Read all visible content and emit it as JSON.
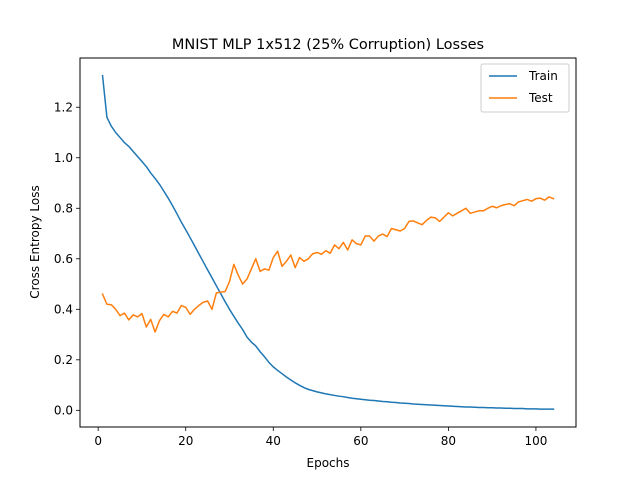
{
  "chart_data": {
    "type": "line",
    "title": "MNIST MLP 1x512 (25% Corruption) Losses",
    "xlabel": "Epochs",
    "ylabel": "Cross Entropy Loss",
    "xlim": [
      -4.15,
      109.15
    ],
    "ylim": [
      -0.066,
      1.395
    ],
    "xticks": [
      0,
      20,
      40,
      60,
      80,
      100
    ],
    "yticks": [
      0.0,
      0.2,
      0.4,
      0.6,
      0.8,
      1.0,
      1.2
    ],
    "grid": false,
    "legend_position": "top-right",
    "x": [
      1,
      2,
      3,
      4,
      5,
      6,
      7,
      8,
      9,
      10,
      11,
      12,
      13,
      14,
      15,
      16,
      17,
      18,
      19,
      20,
      21,
      22,
      23,
      24,
      25,
      26,
      27,
      28,
      29,
      30,
      31,
      32,
      33,
      34,
      35,
      36,
      37,
      38,
      39,
      40,
      41,
      42,
      43,
      44,
      45,
      46,
      47,
      48,
      49,
      50,
      51,
      52,
      53,
      54,
      55,
      56,
      57,
      58,
      59,
      60,
      61,
      62,
      63,
      64,
      65,
      66,
      67,
      68,
      69,
      70,
      71,
      72,
      73,
      74,
      75,
      76,
      77,
      78,
      79,
      80,
      81,
      82,
      83,
      84,
      85,
      86,
      87,
      88,
      89,
      90,
      91,
      92,
      93,
      94,
      95,
      96,
      97,
      98,
      99,
      100,
      101,
      102,
      103,
      104
    ],
    "series": [
      {
        "name": "Train",
        "color": "#1f77b4",
        "values": [
          1.325,
          1.16,
          1.125,
          1.1,
          1.08,
          1.06,
          1.045,
          1.025,
          1.005,
          0.985,
          0.965,
          0.94,
          0.918,
          0.895,
          0.868,
          0.84,
          0.81,
          0.778,
          0.745,
          0.715,
          0.684,
          0.652,
          0.62,
          0.588,
          0.556,
          0.525,
          0.493,
          0.462,
          0.43,
          0.4,
          0.372,
          0.345,
          0.32,
          0.29,
          0.27,
          0.255,
          0.232,
          0.212,
          0.19,
          0.172,
          0.158,
          0.145,
          0.132,
          0.12,
          0.109,
          0.099,
          0.09,
          0.083,
          0.078,
          0.073,
          0.069,
          0.065,
          0.062,
          0.059,
          0.056,
          0.054,
          0.051,
          0.048,
          0.046,
          0.044,
          0.042,
          0.04,
          0.039,
          0.037,
          0.035,
          0.034,
          0.032,
          0.031,
          0.029,
          0.028,
          0.027,
          0.025,
          0.024,
          0.023,
          0.022,
          0.021,
          0.02,
          0.019,
          0.018,
          0.017,
          0.016,
          0.015,
          0.014,
          0.013,
          0.013,
          0.012,
          0.011,
          0.011,
          0.01,
          0.01,
          0.009,
          0.009,
          0.008,
          0.008,
          0.007,
          0.007,
          0.007,
          0.006,
          0.006,
          0.006,
          0.005,
          0.005,
          0.005,
          0.005
        ]
      },
      {
        "name": "Test",
        "color": "#ff7f0e",
        "values": [
          0.46,
          0.42,
          0.418,
          0.4,
          0.375,
          0.385,
          0.358,
          0.378,
          0.37,
          0.383,
          0.33,
          0.36,
          0.31,
          0.355,
          0.38,
          0.37,
          0.392,
          0.385,
          0.415,
          0.408,
          0.38,
          0.4,
          0.415,
          0.428,
          0.433,
          0.4,
          0.465,
          0.468,
          0.47,
          0.51,
          0.578,
          0.535,
          0.5,
          0.52,
          0.56,
          0.6,
          0.55,
          0.56,
          0.555,
          0.605,
          0.63,
          0.57,
          0.59,
          0.615,
          0.565,
          0.605,
          0.59,
          0.6,
          0.62,
          0.625,
          0.618,
          0.632,
          0.622,
          0.655,
          0.64,
          0.665,
          0.635,
          0.675,
          0.66,
          0.655,
          0.69,
          0.69,
          0.67,
          0.69,
          0.698,
          0.688,
          0.72,
          0.715,
          0.71,
          0.72,
          0.748,
          0.75,
          0.742,
          0.735,
          0.752,
          0.765,
          0.762,
          0.748,
          0.765,
          0.782,
          0.77,
          0.78,
          0.79,
          0.8,
          0.78,
          0.785,
          0.79,
          0.79,
          0.8,
          0.808,
          0.802,
          0.81,
          0.815,
          0.818,
          0.81,
          0.825,
          0.83,
          0.835,
          0.828,
          0.838,
          0.84,
          0.832,
          0.845,
          0.838
        ]
      }
    ]
  }
}
